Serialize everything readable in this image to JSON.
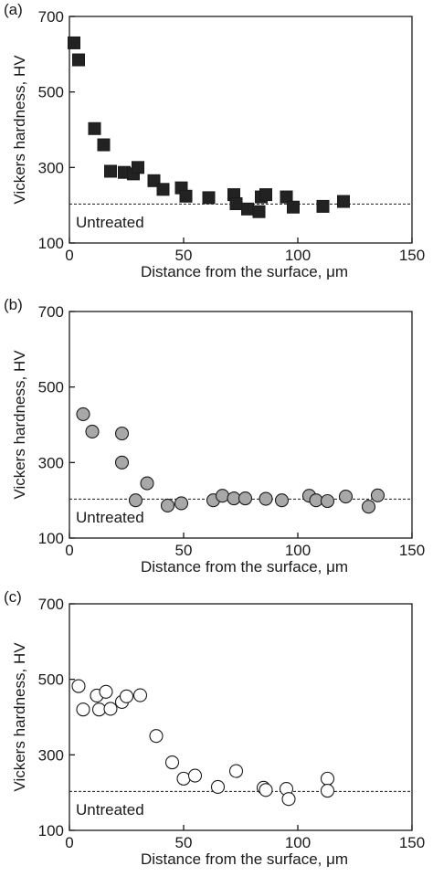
{
  "chart_data": [
    {
      "type": "scatter",
      "panel_label": "(a)",
      "xlabel": "Distance from the surface, μm",
      "ylabel": "Vickers hardness, HV",
      "xlim": [
        0,
        150
      ],
      "ylim": [
        100,
        700
      ],
      "xticks": [
        0,
        50,
        100,
        150
      ],
      "yticks": [
        100,
        300,
        500,
        700
      ],
      "marker": "square",
      "marker_fill": "#222222",
      "reference": {
        "label": "Untreated",
        "y": 203
      },
      "x": [
        2,
        4,
        11,
        15,
        18,
        24,
        28,
        30,
        37,
        41,
        49,
        51,
        61,
        72,
        73,
        78,
        83,
        84,
        86,
        95,
        98,
        111,
        120
      ],
      "y": [
        630,
        585,
        403,
        360,
        290,
        287,
        283,
        300,
        265,
        242,
        246,
        224,
        220,
        228,
        204,
        190,
        183,
        222,
        228,
        222,
        195,
        197,
        210
      ]
    },
    {
      "type": "scatter",
      "panel_label": "(b)",
      "xlabel": "Distance from the surface, μm",
      "ylabel": "Vickers hardness, HV",
      "xlim": [
        0,
        150
      ],
      "ylim": [
        100,
        700
      ],
      "xticks": [
        0,
        50,
        100,
        150
      ],
      "yticks": [
        100,
        300,
        500,
        700
      ],
      "marker": "circle",
      "marker_fill": "#a8a8a8",
      "reference": {
        "label": "Untreated",
        "y": 203
      },
      "x": [
        6,
        10,
        23,
        23,
        29,
        34,
        43,
        49,
        63,
        67,
        72,
        77,
        86,
        93,
        105,
        108,
        113,
        121,
        131,
        135
      ],
      "y": [
        428,
        382,
        377,
        300,
        200,
        245,
        186,
        192,
        200,
        212,
        205,
        205,
        204,
        200,
        212,
        200,
        198,
        210,
        183,
        213
      ]
    },
    {
      "type": "scatter",
      "panel_label": "(c)",
      "xlabel": "Distance from the surface, μm",
      "ylabel": "Vickers hardness, HV",
      "xlim": [
        0,
        150
      ],
      "ylim": [
        100,
        700
      ],
      "xticks": [
        0,
        50,
        100,
        150
      ],
      "yticks": [
        100,
        300,
        500,
        700
      ],
      "marker": "circle",
      "marker_fill": "#ffffff",
      "reference": {
        "label": "Untreated",
        "y": 203
      },
      "x": [
        4,
        6,
        12,
        13,
        16,
        18,
        23,
        25,
        31,
        38,
        45,
        50,
        55,
        65,
        73,
        85,
        86,
        95,
        96,
        113,
        113
      ],
      "y": [
        482,
        420,
        457,
        420,
        467,
        422,
        440,
        455,
        458,
        350,
        280,
        237,
        245,
        215,
        257,
        213,
        207,
        210,
        183,
        237,
        205
      ]
    }
  ]
}
